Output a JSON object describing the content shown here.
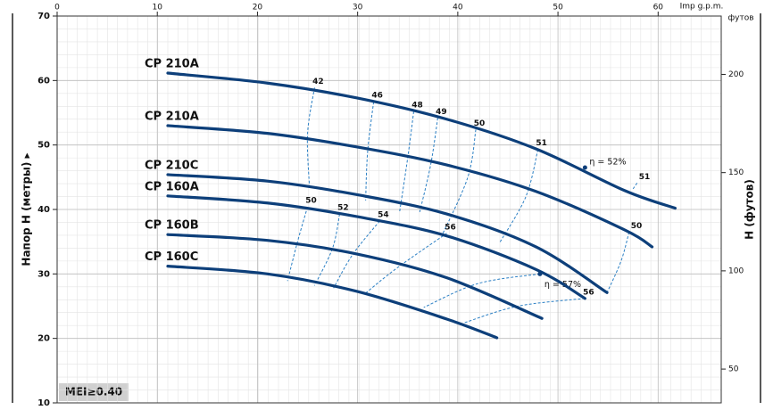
{
  "chart_data": {
    "type": "line",
    "x_label": "Imp g.p.m.",
    "y_label": "Напор H (метры) ▸",
    "y2_label": "H (футов)",
    "y2_unit_label": "футов",
    "badge": "MEI≥0.40",
    "xlim": [
      0,
      66.3
    ],
    "xticks": [
      0,
      10,
      20,
      30,
      40,
      50,
      60
    ],
    "ylim": [
      10,
      70
    ],
    "yticks": [
      10,
      20,
      30,
      40,
      50,
      60,
      70
    ],
    "y2lim": [
      32.8,
      229.7
    ],
    "y2ticks": [
      50,
      100,
      150,
      200
    ],
    "grid": true,
    "series": [
      {
        "name": "CP 210A",
        "color": "#0d3f7a",
        "x": [
          11.05,
          21.0,
          29.9,
          38.9,
          47.8,
          56.7,
          61.7
        ],
        "values": [
          61.15,
          59.6,
          57.3,
          54.0,
          49.4,
          42.9,
          40.2
        ]
      },
      {
        "name": "CP 210A",
        "color": "#0d3f7a",
        "x": [
          11.05,
          21.0,
          29.9,
          38.9,
          47.8,
          56.7,
          59.4
        ],
        "values": [
          53.0,
          51.8,
          49.7,
          46.9,
          42.8,
          36.8,
          34.2
        ]
      },
      {
        "name": "CP 210C",
        "color": "#0d3f7a",
        "x": [
          11.05,
          21.0,
          29.9,
          38.9,
          47.8,
          54.9
        ],
        "values": [
          45.4,
          44.4,
          42.3,
          39.3,
          34.2,
          27.1
        ]
      },
      {
        "name": "CP 160A",
        "color": "#0d3f7a",
        "x": [
          11.05,
          21.0,
          29.9,
          38.9,
          47.8,
          52.7
        ],
        "values": [
          42.1,
          41.0,
          38.9,
          35.9,
          30.7,
          26.2
        ]
      },
      {
        "name": "CP 160B",
        "color": "#0d3f7a",
        "x": [
          11.05,
          21.0,
          29.9,
          38.9,
          48.4
        ],
        "values": [
          36.1,
          35.2,
          33.1,
          29.4,
          23.1
        ]
      },
      {
        "name": "CP 160C",
        "color": "#0d3f7a",
        "x": [
          11.05,
          21.0,
          29.9,
          38.9,
          43.9
        ],
        "values": [
          31.2,
          30.0,
          27.3,
          23.0,
          20.1
        ]
      }
    ],
    "efficiency_color": "#2a7fc4",
    "efficiency": [
      {
        "label": "42",
        "x": [
          25.7,
          25.0,
          25.2
        ],
        "values": [
          58.9,
          51.7,
          43.2
        ]
      },
      {
        "label": "46",
        "x": [
          31.6,
          31.0,
          30.8
        ],
        "values": [
          56.7,
          49.0,
          41.4
        ]
      },
      {
        "label": "48",
        "x": [
          35.6,
          35.0,
          34.2
        ],
        "values": [
          55.2,
          48.0,
          39.7
        ]
      },
      {
        "label": "49",
        "x": [
          38.0,
          37.3,
          36.2
        ],
        "values": [
          54.2,
          47.0,
          39.6
        ]
      },
      {
        "label": "50",
        "x": [
          41.8,
          41.0,
          38.4
        ],
        "values": [
          52.4,
          45.0,
          35.9
        ]
      },
      {
        "label": "51",
        "x": [
          48.0,
          46.8,
          44.2
        ],
        "values": [
          49.3,
          42.0,
          34.9
        ]
      },
      {
        "label": "51",
        "x": [
          57.9,
          57.5
        ],
        "values": [
          44.1,
          43.2
        ]
      },
      {
        "label": "50",
        "x": [
          57.1,
          56.3,
          54.9
        ],
        "values": [
          36.5,
          32.0,
          27.1
        ]
      },
      {
        "label": "η = 52%",
        "x": [
          52.7
        ],
        "values": [
          46.5
        ],
        "marker": true
      },
      {
        "label": "50",
        "x": [
          25.0,
          24.0,
          23.0
        ],
        "values": [
          40.4,
          35.0,
          28.9
        ]
      },
      {
        "label": "52",
        "x": [
          28.2,
          27.5,
          25.7
        ],
        "values": [
          39.3,
          34.0,
          28.2
        ]
      },
      {
        "label": "54",
        "x": [
          32.2,
          29.5,
          27.6
        ],
        "values": [
          38.2,
          33.0,
          27.8
        ]
      },
      {
        "label": "56",
        "x": [
          38.9,
          34.0,
          30.7
        ],
        "values": [
          36.3,
          31.0,
          26.9
        ]
      },
      {
        "label": "η = 57%",
        "x": [
          48.2,
          42.0,
          36.6
        ],
        "values": [
          30.0,
          28.5,
          24.8
        ],
        "marker": true
      },
      {
        "label": "56",
        "x": [
          52.7,
          46.0,
          40.6
        ],
        "values": [
          26.2,
          25.0,
          22.4
        ]
      }
    ]
  }
}
